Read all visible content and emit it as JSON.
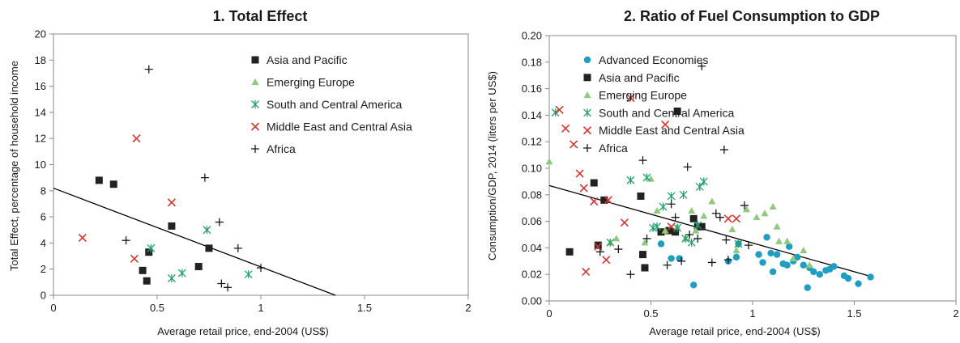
{
  "colors": {
    "asia": "#222222",
    "europe": "#8fc97a",
    "sca": "#26a06e",
    "me": "#d7342c",
    "africa": "#1a1a1a",
    "advanced": "#1f9ec4",
    "trend": "#000000",
    "axis": "#888888"
  },
  "chart_data": [
    {
      "type": "scatter",
      "title": "1. Total Effect",
      "xlabel": "Average retail price, end-2004 (US$)",
      "ylabel": "Total Effect, percentage of household income",
      "xlim": [
        0,
        2
      ],
      "ylim": [
        0,
        20
      ],
      "x_ticks": [
        "0",
        "0.5",
        "1",
        "1.5",
        "2"
      ],
      "y_ticks": [
        "0",
        "2",
        "4",
        "6",
        "8",
        "10",
        "12",
        "14",
        "16",
        "18",
        "20"
      ],
      "grid": false,
      "legend_position": "top-right",
      "trendline": [
        [
          0,
          8.2
        ],
        [
          1.36,
          0
        ]
      ],
      "series": [
        {
          "name": "Asia and Pacific",
          "key": "asia",
          "marker": "square",
          "x": [
            0.22,
            0.29,
            0.43,
            0.45,
            0.46,
            0.57,
            0.7,
            0.75
          ],
          "y": [
            8.8,
            8.5,
            1.9,
            1.1,
            3.3,
            5.3,
            2.2,
            3.6
          ]
        },
        {
          "name": "Emerging Europe",
          "key": "europe",
          "marker": "triangle",
          "x": [],
          "y": []
        },
        {
          "name": "South and Central America",
          "key": "sca",
          "marker": "asterisk",
          "x": [
            0.47,
            0.57,
            0.62,
            0.74,
            0.94
          ],
          "y": [
            3.6,
            1.3,
            1.7,
            5.0,
            1.6
          ]
        },
        {
          "name": "Middle East and Central Asia",
          "key": "me",
          "marker": "x",
          "x": [
            0.14,
            0.39,
            0.4,
            0.57
          ],
          "y": [
            4.4,
            2.8,
            12.0,
            7.1
          ]
        },
        {
          "name": "Africa",
          "key": "africa",
          "marker": "plus",
          "x": [
            0.35,
            0.46,
            0.73,
            0.8,
            0.81,
            0.84,
            0.89,
            1.0
          ],
          "y": [
            4.2,
            17.3,
            9.0,
            5.6,
            0.9,
            0.6,
            3.6,
            2.1
          ]
        }
      ]
    },
    {
      "type": "scatter",
      "title": "2. Ratio of Fuel Consumption to GDP",
      "xlabel": "Average retail price, end-2004 (US$)",
      "ylabel": "Consumption/GDP, 2014 (liters per US$)",
      "xlim": [
        0,
        2
      ],
      "ylim": [
        0,
        0.2
      ],
      "x_ticks": [
        "0",
        "0.5",
        "1",
        "1.5",
        "2"
      ],
      "y_ticks": [
        "0.00",
        "0.02",
        "0.04",
        "0.06",
        "0.08",
        "0.10",
        "0.12",
        "0.14",
        "0.16",
        "0.18",
        "0.20"
      ],
      "grid": false,
      "legend_position": "top-right",
      "trendline": [
        [
          0,
          0.087
        ],
        [
          1.57,
          0.019
        ]
      ],
      "series": [
        {
          "name": "Advanced Economies",
          "key": "advanced",
          "marker": "circle",
          "x": [
            0.55,
            0.6,
            0.64,
            0.71,
            0.88,
            0.92,
            0.93,
            1.03,
            1.05,
            1.07,
            1.1,
            1.12,
            1.15,
            1.17,
            1.2,
            1.22,
            1.25,
            1.27,
            1.28,
            1.3,
            1.33,
            1.36,
            1.38,
            1.4,
            1.45,
            1.47,
            1.52,
            1.58,
            1.09,
            1.18
          ],
          "y": [
            0.043,
            0.032,
            0.032,
            0.012,
            0.03,
            0.033,
            0.043,
            0.035,
            0.029,
            0.048,
            0.022,
            0.035,
            0.028,
            0.027,
            0.03,
            0.033,
            0.027,
            0.01,
            0.025,
            0.022,
            0.02,
            0.023,
            0.024,
            0.026,
            0.019,
            0.017,
            0.013,
            0.018,
            0.036,
            0.041
          ]
        },
        {
          "name": "Asia and Pacific",
          "key": "asia",
          "marker": "square",
          "x": [
            0.1,
            0.22,
            0.24,
            0.27,
            0.45,
            0.46,
            0.47,
            0.55,
            0.59,
            0.62,
            0.63,
            0.71,
            0.73,
            0.75
          ],
          "y": [
            0.037,
            0.089,
            0.042,
            0.076,
            0.079,
            0.035,
            0.025,
            0.052,
            0.053,
            0.052,
            0.143,
            0.062,
            0.056,
            0.056
          ]
        },
        {
          "name": "Emerging Europe",
          "key": "europe",
          "marker": "triangle",
          "x": [
            0.0,
            0.3,
            0.33,
            0.47,
            0.5,
            0.53,
            0.57,
            0.63,
            0.67,
            0.7,
            0.72,
            0.76,
            0.9,
            0.92,
            0.97,
            1.02,
            1.06,
            1.1,
            1.12,
            1.13,
            1.17,
            1.2,
            1.25,
            1.28,
            0.8
          ],
          "y": [
            0.105,
            0.044,
            0.047,
            0.044,
            0.092,
            0.068,
            0.053,
            0.056,
            0.047,
            0.068,
            0.053,
            0.064,
            0.054,
            0.038,
            0.069,
            0.063,
            0.066,
            0.071,
            0.056,
            0.045,
            0.045,
            0.032,
            0.038,
            0.027,
            0.075
          ]
        },
        {
          "name": "South and Central America",
          "key": "sca",
          "marker": "asterisk",
          "x": [
            0.03,
            0.3,
            0.4,
            0.48,
            0.51,
            0.53,
            0.56,
            0.6,
            0.63,
            0.66,
            0.67,
            0.7,
            0.73,
            0.74,
            0.76,
            0.93
          ],
          "y": [
            0.142,
            0.044,
            0.091,
            0.093,
            0.055,
            0.056,
            0.071,
            0.079,
            0.055,
            0.08,
            0.047,
            0.044,
            0.057,
            0.086,
            0.09,
            0.043
          ]
        },
        {
          "name": "Middle East and Central Asia",
          "key": "me",
          "marker": "x",
          "x": [
            0.05,
            0.08,
            0.12,
            0.15,
            0.17,
            0.18,
            0.22,
            0.24,
            0.28,
            0.29,
            0.37,
            0.4,
            0.57,
            0.6,
            0.88,
            0.92
          ],
          "y": [
            0.144,
            0.13,
            0.118,
            0.096,
            0.085,
            0.022,
            0.075,
            0.041,
            0.031,
            0.076,
            0.059,
            0.153,
            0.133,
            0.056,
            0.062,
            0.062
          ]
        },
        {
          "name": "Africa",
          "key": "africa",
          "marker": "plus",
          "x": [
            0.25,
            0.34,
            0.4,
            0.46,
            0.48,
            0.58,
            0.6,
            0.62,
            0.65,
            0.68,
            0.69,
            0.73,
            0.75,
            0.8,
            0.82,
            0.84,
            0.86,
            0.87,
            0.88,
            0.96,
            0.98
          ],
          "y": [
            0.037,
            0.039,
            0.02,
            0.106,
            0.047,
            0.027,
            0.073,
            0.063,
            0.03,
            0.101,
            0.05,
            0.047,
            0.177,
            0.029,
            0.066,
            0.063,
            0.114,
            0.046,
            0.031,
            0.072,
            0.042
          ]
        }
      ]
    }
  ]
}
